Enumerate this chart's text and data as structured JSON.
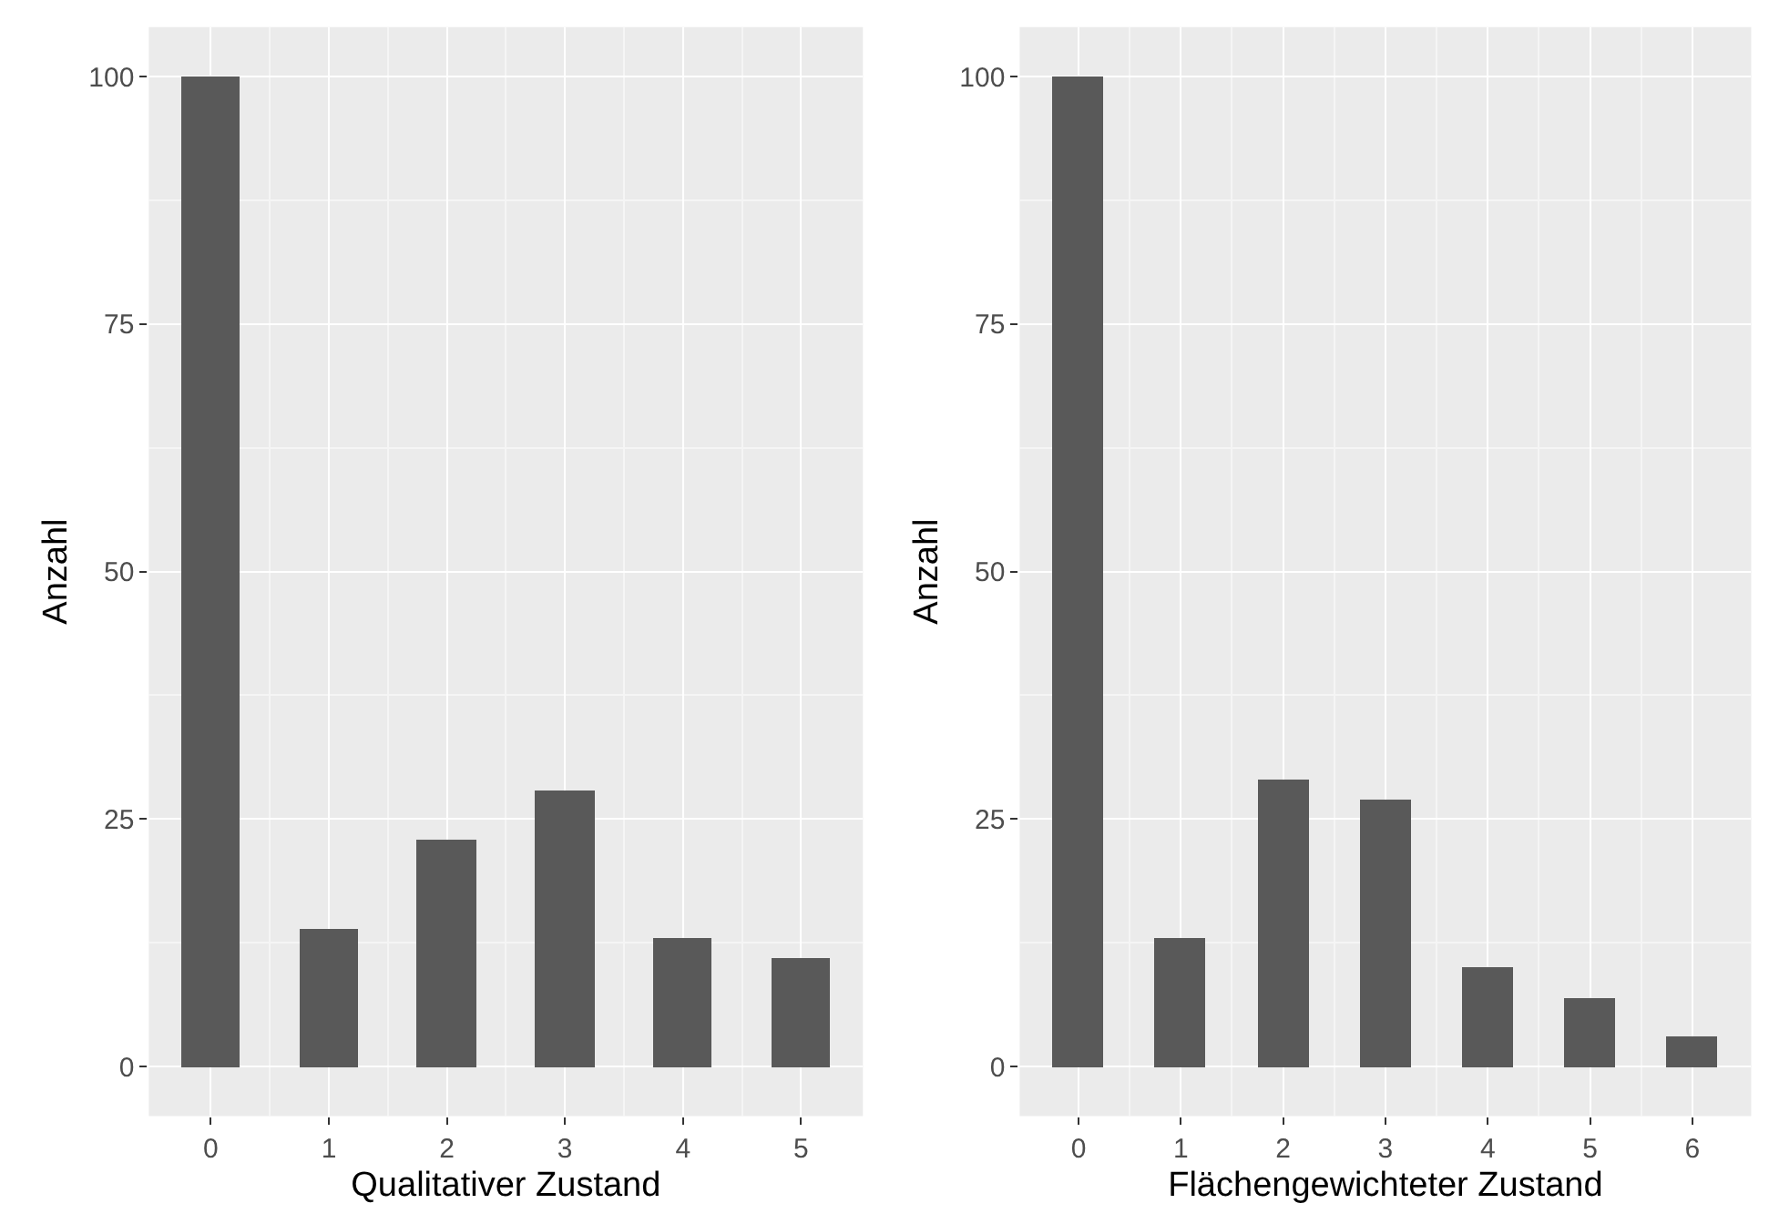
{
  "chart_data": [
    {
      "type": "bar",
      "x": [
        0,
        1,
        2,
        3,
        4,
        5
      ],
      "values": [
        100,
        14,
        23,
        28,
        13,
        11
      ],
      "color": "#595959",
      "xlabel": "Qualitativer Zustand",
      "ylabel": "Anzahl",
      "xlim": [
        -0.525,
        5.525
      ],
      "xticks": [
        0,
        1,
        2,
        3,
        4,
        5
      ],
      "ylim": [
        -5,
        105
      ],
      "yticks": [
        0,
        25,
        50,
        75,
        100
      ],
      "grid": true
    },
    {
      "type": "bar",
      "x": [
        0,
        1,
        2,
        3,
        4,
        5,
        6
      ],
      "values": [
        100,
        13,
        29,
        27,
        10,
        7,
        3
      ],
      "color": "#595959",
      "xlabel": "Flächengewichteter Zustand",
      "ylabel": "Anzahl",
      "xlim": [
        -0.575,
        6.575
      ],
      "xticks": [
        0,
        1,
        2,
        3,
        4,
        5,
        6
      ],
      "ylim": [
        -5,
        105
      ],
      "yticks": [
        0,
        25,
        50,
        75,
        100
      ],
      "grid": true
    }
  ]
}
